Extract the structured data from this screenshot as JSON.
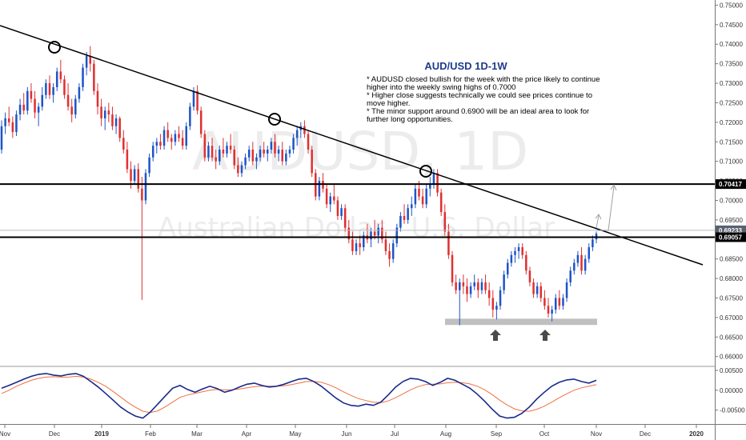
{
  "chart_data": {
    "type": "candlestick",
    "watermark": {
      "symbol": "AUDUSD, 1D",
      "name": "Australian Dollar / U.S. Dollar"
    },
    "annotation": {
      "title": "AUD/USD 1D-1W",
      "lines": [
        "* AUDUSD closed bullish for the week with the price likely to continue",
        "higher into the weekly swing highs of 0.7000",
        "* Higher close suggests technically we could see prices continue to",
        "move higher.",
        "* The minor support around 0.6900 will be an ideal area to look for",
        "further long opportunities."
      ]
    },
    "y_axis": {
      "ylim": [
        0.6585,
        0.7505
      ],
      "ticks": [
        "0.75000",
        "0.74500",
        "0.74000",
        "0.73500",
        "0.73000",
        "0.72500",
        "0.72000",
        "0.71500",
        "0.71000",
        "0.70500",
        "0.70000",
        "0.69500",
        "0.69000",
        "0.68500",
        "0.68000",
        "0.67500",
        "0.67000",
        "0.66500",
        "0.66000"
      ]
    },
    "x_axis": {
      "labels": [
        {
          "text": "Nov",
          "bold": false
        },
        {
          "text": "Dec",
          "bold": false
        },
        {
          "text": "2019",
          "bold": true
        },
        {
          "text": "Feb",
          "bold": false
        },
        {
          "text": "Mar",
          "bold": false
        },
        {
          "text": "Apr",
          "bold": false
        },
        {
          "text": "May",
          "bold": false
        },
        {
          "text": "Jun",
          "bold": false
        },
        {
          "text": "Jul",
          "bold": false
        },
        {
          "text": "Aug",
          "bold": false
        },
        {
          "text": "Sep",
          "bold": false
        },
        {
          "text": "Oct",
          "bold": false
        },
        {
          "text": "Nov",
          "bold": false
        },
        {
          "text": "Dec",
          "bold": false
        },
        {
          "text": "2020",
          "bold": true
        }
      ]
    },
    "levels": [
      {
        "value": 0.70417,
        "label": "0.70417",
        "style": "solid"
      },
      {
        "value": 0.69233,
        "label": "0.69233",
        "style": "thin"
      },
      {
        "value": 0.69057,
        "label": "0.69057",
        "style": "solid"
      }
    ],
    "oscillator": {
      "ticks": [
        "0.00500",
        "0.00000",
        "-0.00500"
      ],
      "ylim": [
        -0.0085,
        0.0058
      ]
    },
    "colors": {
      "up": "#26a69a",
      "bull": "#1e55c7",
      "bear": "#e03030",
      "fast_line": "#1a2a8a",
      "slow_line": "#f07040",
      "support_zone": "#c0c0c0",
      "trendline": "#000000"
    },
    "candles": [
      [
        0.713,
        0.7205,
        0.712,
        0.719
      ],
      [
        0.719,
        0.7225,
        0.717,
        0.721
      ],
      [
        0.721,
        0.724,
        0.719,
        0.72
      ],
      [
        0.72,
        0.7215,
        0.716,
        0.7175
      ],
      [
        0.7175,
        0.723,
        0.7165,
        0.722
      ],
      [
        0.722,
        0.726,
        0.7205,
        0.7245
      ],
      [
        0.7245,
        0.7275,
        0.722,
        0.723
      ],
      [
        0.723,
        0.729,
        0.722,
        0.728
      ],
      [
        0.728,
        0.73,
        0.725,
        0.726
      ],
      [
        0.726,
        0.728,
        0.721,
        0.7225
      ],
      [
        0.7225,
        0.725,
        0.719,
        0.724
      ],
      [
        0.724,
        0.729,
        0.723,
        0.727
      ],
      [
        0.727,
        0.731,
        0.726,
        0.73
      ],
      [
        0.73,
        0.732,
        0.726,
        0.727
      ],
      [
        0.727,
        0.73,
        0.725,
        0.729
      ],
      [
        0.729,
        0.734,
        0.728,
        0.733
      ],
      [
        0.733,
        0.736,
        0.73,
        0.731
      ],
      [
        0.731,
        0.732,
        0.726,
        0.727
      ],
      [
        0.727,
        0.73,
        0.723,
        0.724
      ],
      [
        0.724,
        0.726,
        0.72,
        0.722
      ],
      [
        0.722,
        0.727,
        0.721,
        0.726
      ],
      [
        0.726,
        0.73,
        0.725,
        0.729
      ],
      [
        0.729,
        0.735,
        0.728,
        0.734
      ],
      [
        0.734,
        0.738,
        0.732,
        0.737
      ],
      [
        0.737,
        0.7395,
        0.733,
        0.735
      ],
      [
        0.735,
        0.736,
        0.727,
        0.728
      ],
      [
        0.728,
        0.73,
        0.722,
        0.724
      ],
      [
        0.724,
        0.726,
        0.719,
        0.721
      ],
      [
        0.721,
        0.724,
        0.718,
        0.723
      ],
      [
        0.723,
        0.725,
        0.72,
        0.722
      ],
      [
        0.722,
        0.724,
        0.718,
        0.719
      ],
      [
        0.719,
        0.722,
        0.717,
        0.721
      ],
      [
        0.721,
        0.7215,
        0.715,
        0.716
      ],
      [
        0.716,
        0.718,
        0.712,
        0.713
      ],
      [
        0.713,
        0.715,
        0.707,
        0.708
      ],
      [
        0.708,
        0.71,
        0.703,
        0.705
      ],
      [
        0.705,
        0.709,
        0.704,
        0.708
      ],
      [
        0.708,
        0.7095,
        0.702,
        0.703
      ],
      [
        0.703,
        0.706,
        0.6745,
        0.7
      ],
      [
        0.7,
        0.708,
        0.699,
        0.707
      ],
      [
        0.707,
        0.712,
        0.706,
        0.711
      ],
      [
        0.711,
        0.715,
        0.71,
        0.714
      ],
      [
        0.714,
        0.716,
        0.712,
        0.715
      ],
      [
        0.715,
        0.717,
        0.713,
        0.714
      ],
      [
        0.714,
        0.719,
        0.713,
        0.718
      ],
      [
        0.718,
        0.72,
        0.715,
        0.716
      ],
      [
        0.716,
        0.717,
        0.713,
        0.715
      ],
      [
        0.715,
        0.718,
        0.714,
        0.717
      ],
      [
        0.717,
        0.719,
        0.715,
        0.716
      ],
      [
        0.716,
        0.718,
        0.713,
        0.714
      ],
      [
        0.714,
        0.72,
        0.713,
        0.719
      ],
      [
        0.719,
        0.725,
        0.718,
        0.724
      ],
      [
        0.724,
        0.729,
        0.723,
        0.728
      ],
      [
        0.728,
        0.7295,
        0.722,
        0.723
      ],
      [
        0.723,
        0.724,
        0.716,
        0.717
      ],
      [
        0.717,
        0.718,
        0.71,
        0.711
      ],
      [
        0.711,
        0.715,
        0.71,
        0.714
      ],
      [
        0.714,
        0.716,
        0.71,
        0.711
      ],
      [
        0.711,
        0.713,
        0.708,
        0.71
      ],
      [
        0.71,
        0.714,
        0.709,
        0.713
      ],
      [
        0.713,
        0.716,
        0.711,
        0.712
      ],
      [
        0.712,
        0.715,
        0.711,
        0.714
      ],
      [
        0.714,
        0.717,
        0.712,
        0.713
      ],
      [
        0.713,
        0.714,
        0.708,
        0.709
      ],
      [
        0.709,
        0.711,
        0.706,
        0.707
      ],
      [
        0.707,
        0.71,
        0.706,
        0.709
      ],
      [
        0.709,
        0.712,
        0.708,
        0.711
      ],
      [
        0.711,
        0.714,
        0.71,
        0.713
      ],
      [
        0.713,
        0.715,
        0.709,
        0.71
      ],
      [
        0.71,
        0.712,
        0.708,
        0.711
      ],
      [
        0.711,
        0.714,
        0.71,
        0.713
      ],
      [
        0.713,
        0.715,
        0.711,
        0.712
      ],
      [
        0.712,
        0.714,
        0.71,
        0.713
      ],
      [
        0.713,
        0.716,
        0.712,
        0.715
      ],
      [
        0.715,
        0.717,
        0.711,
        0.712
      ],
      [
        0.712,
        0.714,
        0.71,
        0.713
      ],
      [
        0.713,
        0.715,
        0.709,
        0.71
      ],
      [
        0.71,
        0.713,
        0.709,
        0.712
      ],
      [
        0.712,
        0.714,
        0.711,
        0.713
      ],
      [
        0.713,
        0.717,
        0.712,
        0.716
      ],
      [
        0.716,
        0.719,
        0.714,
        0.718
      ],
      [
        0.718,
        0.72,
        0.716,
        0.719
      ],
      [
        0.719,
        0.7205,
        0.716,
        0.717
      ],
      [
        0.717,
        0.718,
        0.712,
        0.713
      ],
      [
        0.713,
        0.714,
        0.706,
        0.707
      ],
      [
        0.707,
        0.708,
        0.7,
        0.701
      ],
      [
        0.701,
        0.706,
        0.7,
        0.705
      ],
      [
        0.705,
        0.707,
        0.702,
        0.703
      ],
      [
        0.703,
        0.704,
        0.698,
        0.699
      ],
      [
        0.699,
        0.702,
        0.697,
        0.701
      ],
      [
        0.701,
        0.704,
        0.699,
        0.7
      ],
      [
        0.7,
        0.701,
        0.695,
        0.696
      ],
      [
        0.696,
        0.699,
        0.695,
        0.698
      ],
      [
        0.698,
        0.699,
        0.692,
        0.693
      ],
      [
        0.693,
        0.695,
        0.689,
        0.69
      ],
      [
        0.69,
        0.692,
        0.686,
        0.687
      ],
      [
        0.687,
        0.69,
        0.686,
        0.689
      ],
      [
        0.689,
        0.691,
        0.686,
        0.688
      ],
      [
        0.688,
        0.692,
        0.687,
        0.691
      ],
      [
        0.691,
        0.694,
        0.689,
        0.69
      ],
      [
        0.69,
        0.693,
        0.688,
        0.692
      ],
      [
        0.692,
        0.695,
        0.69,
        0.691
      ],
      [
        0.691,
        0.694,
        0.689,
        0.693
      ],
      [
        0.693,
        0.695,
        0.689,
        0.69
      ],
      [
        0.69,
        0.692,
        0.686,
        0.687
      ],
      [
        0.687,
        0.689,
        0.683,
        0.685
      ],
      [
        0.685,
        0.69,
        0.684,
        0.689
      ],
      [
        0.689,
        0.694,
        0.688,
        0.693
      ],
      [
        0.693,
        0.697,
        0.692,
        0.696
      ],
      [
        0.696,
        0.699,
        0.694,
        0.695
      ],
      [
        0.695,
        0.699,
        0.694,
        0.698
      ],
      [
        0.698,
        0.701,
        0.696,
        0.699
      ],
      [
        0.699,
        0.704,
        0.698,
        0.703
      ],
      [
        0.703,
        0.705,
        0.7,
        0.701
      ],
      [
        0.701,
        0.703,
        0.698,
        0.699
      ],
      [
        0.699,
        0.704,
        0.698,
        0.703
      ],
      [
        0.703,
        0.706,
        0.701,
        0.704
      ],
      [
        0.704,
        0.708,
        0.703,
        0.707
      ],
      [
        0.707,
        0.708,
        0.701,
        0.702
      ],
      [
        0.702,
        0.703,
        0.696,
        0.697
      ],
      [
        0.697,
        0.699,
        0.691,
        0.692
      ],
      [
        0.692,
        0.694,
        0.685,
        0.686
      ],
      [
        0.686,
        0.687,
        0.678,
        0.679
      ],
      [
        0.679,
        0.681,
        0.676,
        0.677
      ],
      [
        0.677,
        0.68,
        0.668,
        0.679
      ],
      [
        0.679,
        0.681,
        0.676,
        0.678
      ],
      [
        0.678,
        0.68,
        0.674,
        0.676
      ],
      [
        0.676,
        0.679,
        0.675,
        0.678
      ],
      [
        0.678,
        0.681,
        0.677,
        0.679
      ],
      [
        0.679,
        0.68,
        0.675,
        0.677
      ],
      [
        0.677,
        0.68,
        0.676,
        0.679
      ],
      [
        0.679,
        0.681,
        0.676,
        0.677
      ],
      [
        0.677,
        0.679,
        0.673,
        0.675
      ],
      [
        0.675,
        0.677,
        0.67,
        0.672
      ],
      [
        0.672,
        0.674,
        0.6695,
        0.673
      ],
      [
        0.673,
        0.678,
        0.672,
        0.677
      ],
      [
        0.677,
        0.682,
        0.676,
        0.681
      ],
      [
        0.681,
        0.685,
        0.68,
        0.684
      ],
      [
        0.684,
        0.687,
        0.683,
        0.686
      ],
      [
        0.686,
        0.688,
        0.684,
        0.687
      ],
      [
        0.687,
        0.689,
        0.685,
        0.688
      ],
      [
        0.688,
        0.689,
        0.685,
        0.686
      ],
      [
        0.686,
        0.687,
        0.681,
        0.682
      ],
      [
        0.682,
        0.683,
        0.678,
        0.679
      ],
      [
        0.679,
        0.68,
        0.675,
        0.676
      ],
      [
        0.676,
        0.679,
        0.675,
        0.678
      ],
      [
        0.678,
        0.679,
        0.674,
        0.675
      ],
      [
        0.675,
        0.677,
        0.672,
        0.673
      ],
      [
        0.673,
        0.675,
        0.67,
        0.671
      ],
      [
        0.671,
        0.673,
        0.669,
        0.672
      ],
      [
        0.672,
        0.676,
        0.671,
        0.675
      ],
      [
        0.675,
        0.677,
        0.672,
        0.673
      ],
      [
        0.673,
        0.676,
        0.672,
        0.675
      ],
      [
        0.675,
        0.68,
        0.674,
        0.679
      ],
      [
        0.679,
        0.683,
        0.678,
        0.682
      ],
      [
        0.682,
        0.685,
        0.681,
        0.684
      ],
      [
        0.684,
        0.687,
        0.683,
        0.686
      ],
      [
        0.686,
        0.688,
        0.681,
        0.682
      ],
      [
        0.682,
        0.686,
        0.681,
        0.685
      ],
      [
        0.685,
        0.689,
        0.684,
        0.688
      ],
      [
        0.688,
        0.691,
        0.687,
        0.69
      ],
      [
        0.69,
        0.692,
        0.689,
        0.6915
      ]
    ],
    "oscillator_fast": [
      0.0005,
      0.0012,
      0.002,
      0.0028,
      0.0035,
      0.004,
      0.0042,
      0.0038,
      0.0036,
      0.004,
      0.0042,
      0.0035,
      0.0022,
      0.0008,
      -0.0008,
      -0.0025,
      -0.0042,
      -0.0055,
      -0.0065,
      -0.007,
      -0.0055,
      -0.0035,
      -0.0015,
      0.0005,
      0.0012,
      0.0002,
      -0.0005,
      0.0003,
      0.001,
      0.0004,
      -0.0005,
      0.0,
      0.0008,
      0.0015,
      0.0018,
      0.0012,
      0.0008,
      0.001,
      0.0015,
      0.0022,
      0.0028,
      0.003,
      0.0022,
      0.001,
      -0.0005,
      -0.002,
      -0.0032,
      -0.0038,
      -0.004,
      -0.0035,
      -0.0038,
      -0.003,
      -0.0012,
      0.0008,
      0.0022,
      0.003,
      0.0028,
      0.0022,
      0.0012,
      0.002,
      0.003,
      0.0025,
      0.0015,
      0.0005,
      -0.001,
      -0.0028,
      -0.0048,
      -0.0065,
      -0.007,
      -0.0068,
      -0.0058,
      -0.0042,
      -0.0022,
      -0.0005,
      0.001,
      0.002,
      0.0026,
      0.0028,
      0.0022,
      0.0018,
      0.0025
    ],
    "oscillator_slow": [
      -0.0008,
      0.0,
      0.001,
      0.0018,
      0.0025,
      0.003,
      0.0033,
      0.0034,
      0.0033,
      0.0033,
      0.0035,
      0.0033,
      0.0028,
      0.002,
      0.001,
      -0.0003,
      -0.0017,
      -0.0031,
      -0.0043,
      -0.0053,
      -0.0056,
      -0.0052,
      -0.0042,
      -0.003,
      -0.0018,
      -0.0012,
      -0.0008,
      -0.0004,
      0.0,
      0.0002,
      0.0001,
      0.0001,
      0.0003,
      0.0006,
      0.0009,
      0.001,
      0.001,
      0.001,
      0.0011,
      0.0014,
      0.0018,
      0.0022,
      0.0022,
      0.002,
      0.0014,
      0.0006,
      -0.0004,
      -0.0013,
      -0.0021,
      -0.0026,
      -0.003,
      -0.0031,
      -0.0027,
      -0.0019,
      -0.0009,
      0.0001,
      0.0009,
      0.0014,
      0.0015,
      0.0016,
      0.0019,
      0.002,
      0.0019,
      0.0016,
      0.001,
      0.0001,
      -0.0011,
      -0.0025,
      -0.0037,
      -0.0047,
      -0.0052,
      -0.0053,
      -0.0048,
      -0.004,
      -0.003,
      -0.0019,
      -0.0009,
      0.0,
      0.0006,
      0.001,
      0.0014
    ]
  }
}
